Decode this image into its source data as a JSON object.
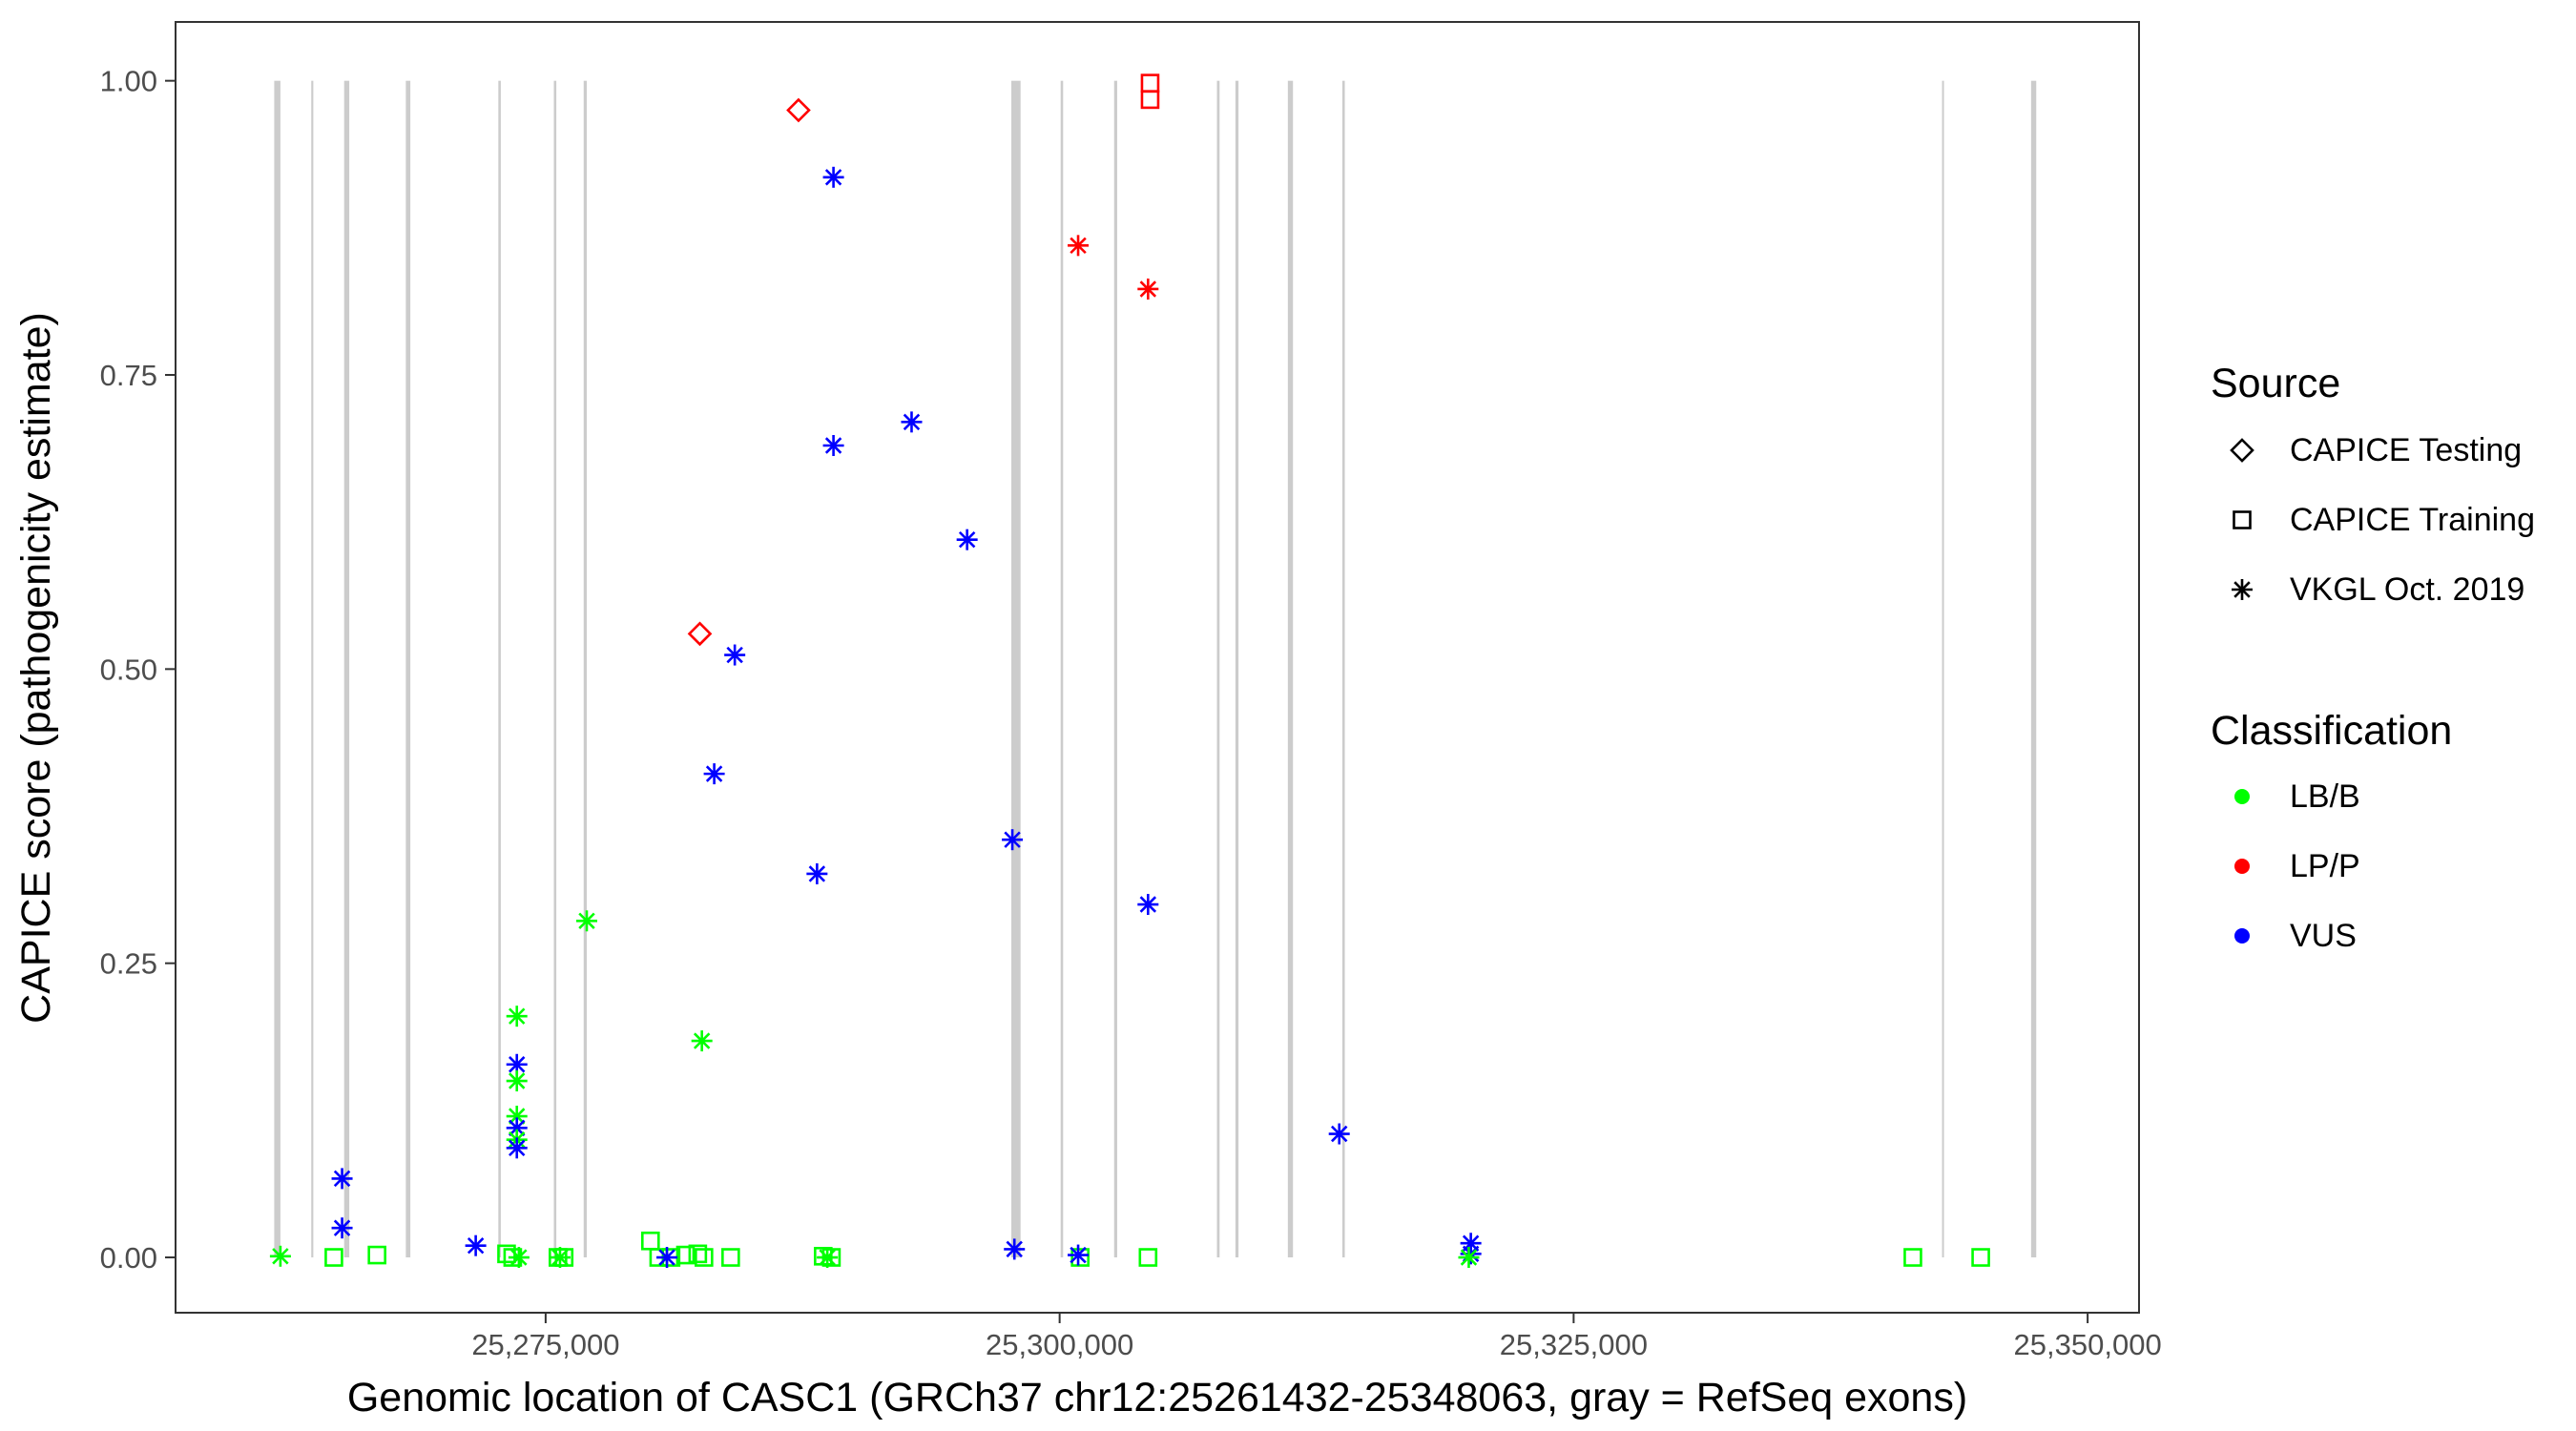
{
  "chart_data": {
    "type": "scatter",
    "xlabel": "Genomic location of CASC1 (GRCh37 chr12:25261432-25348063, gray = RefSeq exons)",
    "ylabel": "CAPICE score (pathogenicity estimate)",
    "xlim": [
      25257000,
      25352500
    ],
    "ylim": [
      -0.047,
      1.05
    ],
    "x_ticks": [
      25275000,
      25300000,
      25325000,
      25350000
    ],
    "x_tick_labels": [
      "25,275,000",
      "25,300,000",
      "25,325,000",
      "25,350,000"
    ],
    "y_ticks": [
      0,
      0.25,
      0.5,
      0.75,
      1.0
    ],
    "y_tick_labels": [
      "0.00",
      "0.25",
      "0.50",
      "0.75",
      "1.00"
    ],
    "grid": false,
    "exons": [
      {
        "start": 25261800,
        "end": 25262100
      },
      {
        "start": 25263600,
        "end": 25263700
      },
      {
        "start": 25265200,
        "end": 25265450
      },
      {
        "start": 25268200,
        "end": 25268420
      },
      {
        "start": 25272700,
        "end": 25272820
      },
      {
        "start": 25275400,
        "end": 25275520
      },
      {
        "start": 25276850,
        "end": 25277000
      },
      {
        "start": 25297650,
        "end": 25298100
      },
      {
        "start": 25300050,
        "end": 25300170
      },
      {
        "start": 25302650,
        "end": 25302800
      },
      {
        "start": 25307650,
        "end": 25307780
      },
      {
        "start": 25308550,
        "end": 25308700
      },
      {
        "start": 25311100,
        "end": 25311350
      },
      {
        "start": 25313750,
        "end": 25313870
      },
      {
        "start": 25342920,
        "end": 25343000
      },
      {
        "start": 25347250,
        "end": 25347500
      }
    ],
    "legend": {
      "placement": "right",
      "source_title": "Source",
      "source_items": [
        {
          "label": "CAPICE Testing",
          "shape": "diamond"
        },
        {
          "label": "CAPICE Training",
          "shape": "square"
        },
        {
          "label": "VKGL Oct. 2019",
          "shape": "asterisk"
        }
      ],
      "class_title": "Classification",
      "class_items": [
        {
          "label": "LB/B",
          "color": "#00ff00"
        },
        {
          "label": "LP/P",
          "color": "#ff0000"
        },
        {
          "label": "VUS",
          "color": "#0000ff"
        }
      ]
    },
    "series": [
      {
        "source": "CAPICE Testing",
        "points": [
          {
            "x": 25287300,
            "y": 0.975,
            "cls": "LP/P"
          },
          {
            "x": 25282500,
            "y": 0.53,
            "cls": "LP/P"
          }
        ]
      },
      {
        "source": "CAPICE Training",
        "points": [
          {
            "x": 25304400,
            "y": 0.998,
            "cls": "LP/P"
          },
          {
            "x": 25304400,
            "y": 0.984,
            "cls": "LP/P"
          },
          {
            "x": 25264700,
            "y": 0.0,
            "cls": "LB/B"
          },
          {
            "x": 25266800,
            "y": 0.002,
            "cls": "LB/B"
          },
          {
            "x": 25273100,
            "y": 0.003,
            "cls": "LB/B"
          },
          {
            "x": 25273400,
            "y": 0.0,
            "cls": "LB/B"
          },
          {
            "x": 25275600,
            "y": 0.0,
            "cls": "LB/B"
          },
          {
            "x": 25275900,
            "y": 0.0,
            "cls": "LB/B"
          },
          {
            "x": 25280100,
            "y": 0.014,
            "cls": "LB/B"
          },
          {
            "x": 25280500,
            "y": 0.0,
            "cls": "LB/B"
          },
          {
            "x": 25281100,
            "y": 0.0,
            "cls": "LB/B"
          },
          {
            "x": 25281800,
            "y": 0.002,
            "cls": "LB/B"
          },
          {
            "x": 25282400,
            "y": 0.003,
            "cls": "LB/B"
          },
          {
            "x": 25282700,
            "y": 0.0,
            "cls": "LB/B"
          },
          {
            "x": 25284000,
            "y": 0.0,
            "cls": "LB/B"
          },
          {
            "x": 25288500,
            "y": 0.001,
            "cls": "LB/B"
          },
          {
            "x": 25288900,
            "y": 0.0,
            "cls": "LB/B"
          },
          {
            "x": 25301000,
            "y": 0.0,
            "cls": "LB/B"
          },
          {
            "x": 25304300,
            "y": 0.0,
            "cls": "LB/B"
          },
          {
            "x": 25341500,
            "y": 0.0,
            "cls": "LB/B"
          },
          {
            "x": 25344800,
            "y": 0.0,
            "cls": "LB/B"
          }
        ]
      },
      {
        "source": "VKGL Oct. 2019",
        "points": [
          {
            "x": 25289000,
            "y": 0.918,
            "cls": "VUS"
          },
          {
            "x": 25300900,
            "y": 0.86,
            "cls": "LP/P"
          },
          {
            "x": 25304300,
            "y": 0.823,
            "cls": "LP/P"
          },
          {
            "x": 25292800,
            "y": 0.71,
            "cls": "VUS"
          },
          {
            "x": 25289000,
            "y": 0.69,
            "cls": "VUS"
          },
          {
            "x": 25295500,
            "y": 0.61,
            "cls": "VUS"
          },
          {
            "x": 25284200,
            "y": 0.512,
            "cls": "VUS"
          },
          {
            "x": 25283200,
            "y": 0.411,
            "cls": "VUS"
          },
          {
            "x": 25297700,
            "y": 0.355,
            "cls": "VUS"
          },
          {
            "x": 25288200,
            "y": 0.326,
            "cls": "VUS"
          },
          {
            "x": 25304300,
            "y": 0.3,
            "cls": "VUS"
          },
          {
            "x": 25277000,
            "y": 0.286,
            "cls": "LB/B"
          },
          {
            "x": 25273600,
            "y": 0.205,
            "cls": "LB/B"
          },
          {
            "x": 25282600,
            "y": 0.184,
            "cls": "LB/B"
          },
          {
            "x": 25273600,
            "y": 0.164,
            "cls": "VUS"
          },
          {
            "x": 25273600,
            "y": 0.15,
            "cls": "LB/B"
          },
          {
            "x": 25273600,
            "y": 0.12,
            "cls": "LB/B"
          },
          {
            "x": 25273600,
            "y": 0.11,
            "cls": "VUS"
          },
          {
            "x": 25273600,
            "y": 0.1,
            "cls": "LB/B"
          },
          {
            "x": 25273600,
            "y": 0.093,
            "cls": "VUS"
          },
          {
            "x": 25313600,
            "y": 0.105,
            "cls": "VUS"
          },
          {
            "x": 25265100,
            "y": 0.067,
            "cls": "VUS"
          },
          {
            "x": 25265100,
            "y": 0.025,
            "cls": "VUS"
          },
          {
            "x": 25271600,
            "y": 0.01,
            "cls": "VUS"
          },
          {
            "x": 25262100,
            "y": 0.001,
            "cls": "LB/B"
          },
          {
            "x": 25273700,
            "y": 0.0,
            "cls": "LB/B"
          },
          {
            "x": 25275700,
            "y": 0.0,
            "cls": "LB/B"
          },
          {
            "x": 25280900,
            "y": 0.0,
            "cls": "VUS"
          },
          {
            "x": 25288700,
            "y": 0.0,
            "cls": "LB/B"
          },
          {
            "x": 25297800,
            "y": 0.007,
            "cls": "VUS"
          },
          {
            "x": 25300900,
            "y": 0.002,
            "cls": "VUS"
          },
          {
            "x": 25320000,
            "y": 0.012,
            "cls": "VUS"
          },
          {
            "x": 25320000,
            "y": 0.003,
            "cls": "VUS"
          },
          {
            "x": 25319900,
            "y": 0.0,
            "cls": "LB/B"
          }
        ]
      }
    ]
  }
}
